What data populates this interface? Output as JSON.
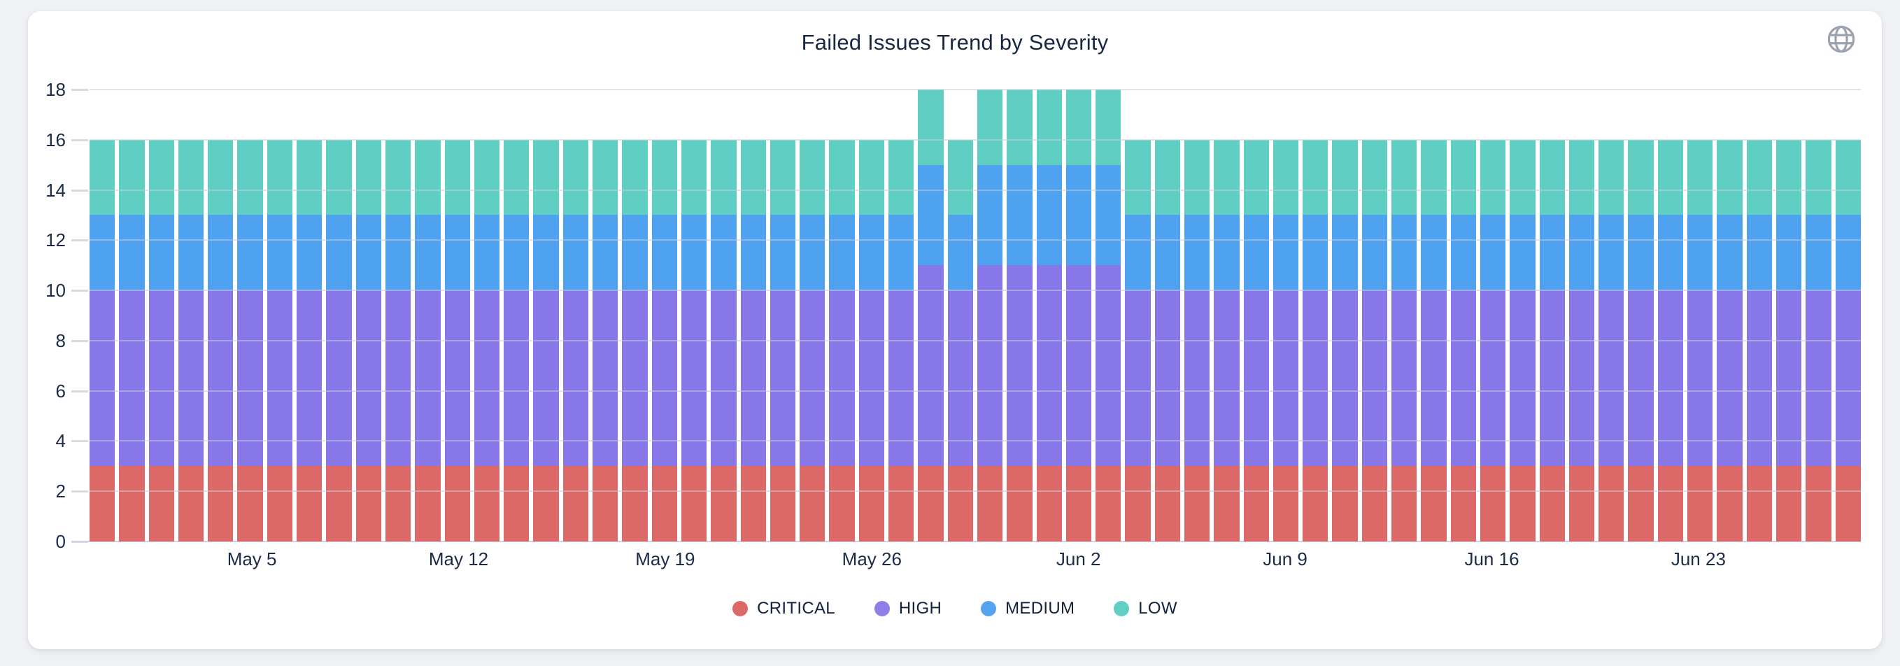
{
  "page": {
    "background": "#eff1f5",
    "card_background": "#ffffff"
  },
  "header": {
    "icons": {
      "action": "globe-icon"
    },
    "icon_color": "#9aa3ae"
  },
  "chart_data": {
    "type": "bar",
    "stacked": true,
    "title": "Failed Issues Trend by Severity",
    "xlabel": "",
    "ylabel": "",
    "ylim": [
      0,
      18
    ],
    "yticks": [
      0,
      2,
      4,
      6,
      8,
      10,
      12,
      14,
      16,
      18
    ],
    "grid": "horizontal",
    "legend_position": "bottom",
    "x": [
      "Apr 30",
      "May 1",
      "May 2",
      "May 3",
      "May 4",
      "May 5",
      "May 6",
      "May 7",
      "May 8",
      "May 9",
      "May 10",
      "May 11",
      "May 12",
      "May 13",
      "May 14",
      "May 15",
      "May 16",
      "May 17",
      "May 18",
      "May 19",
      "May 20",
      "May 21",
      "May 22",
      "May 23",
      "May 24",
      "May 25",
      "May 26",
      "May 27",
      "May 28",
      "May 29",
      "May 30",
      "May 31",
      "Jun 1",
      "Jun 2",
      "Jun 3",
      "Jun 4",
      "Jun 5",
      "Jun 6",
      "Jun 7",
      "Jun 8",
      "Jun 9",
      "Jun 10",
      "Jun 11",
      "Jun 12",
      "Jun 13",
      "Jun 14",
      "Jun 15",
      "Jun 16",
      "Jun 17",
      "Jun 18",
      "Jun 19",
      "Jun 20",
      "Jun 21",
      "Jun 22",
      "Jun 23",
      "Jun 24",
      "Jun 25",
      "Jun 26",
      "Jun 27",
      "Jun 28"
    ],
    "xtick_labels": [
      "May 5",
      "May 12",
      "May 19",
      "May 26",
      "Jun 2",
      "Jun 9",
      "Jun 16",
      "Jun 23"
    ],
    "xtick_indices": [
      5,
      12,
      19,
      26,
      33,
      40,
      47,
      54
    ],
    "series": [
      {
        "name": "CRITICAL",
        "color": "#dc6868",
        "values": [
          3,
          3,
          3,
          3,
          3,
          3,
          3,
          3,
          3,
          3,
          3,
          3,
          3,
          3,
          3,
          3,
          3,
          3,
          3,
          3,
          3,
          3,
          3,
          3,
          3,
          3,
          3,
          3,
          3,
          3,
          3,
          3,
          3,
          3,
          3,
          3,
          3,
          3,
          3,
          3,
          3,
          3,
          3,
          3,
          3,
          3,
          3,
          3,
          3,
          3,
          3,
          3,
          3,
          3,
          3,
          3,
          3,
          3,
          3,
          3
        ]
      },
      {
        "name": "HIGH",
        "color": "#8777e8",
        "values": [
          7,
          7,
          7,
          7,
          7,
          7,
          7,
          7,
          7,
          7,
          7,
          7,
          7,
          7,
          7,
          7,
          7,
          7,
          7,
          7,
          7,
          7,
          7,
          7,
          7,
          7,
          7,
          7,
          8,
          7,
          8,
          8,
          8,
          8,
          8,
          7,
          7,
          7,
          7,
          7,
          7,
          7,
          7,
          7,
          7,
          7,
          7,
          7,
          7,
          7,
          7,
          7,
          7,
          7,
          7,
          7,
          7,
          7,
          7,
          7
        ]
      },
      {
        "name": "MEDIUM",
        "color": "#4ea2ef",
        "values": [
          3,
          3,
          3,
          3,
          3,
          3,
          3,
          3,
          3,
          3,
          3,
          3,
          3,
          3,
          3,
          3,
          3,
          3,
          3,
          3,
          3,
          3,
          3,
          3,
          3,
          3,
          3,
          3,
          4,
          3,
          4,
          4,
          4,
          4,
          4,
          3,
          3,
          3,
          3,
          3,
          3,
          3,
          3,
          3,
          3,
          3,
          3,
          3,
          3,
          3,
          3,
          3,
          3,
          3,
          3,
          3,
          3,
          3,
          3,
          3
        ]
      },
      {
        "name": "LOW",
        "color": "#5fcec3",
        "values": [
          3,
          3,
          3,
          3,
          3,
          3,
          3,
          3,
          3,
          3,
          3,
          3,
          3,
          3,
          3,
          3,
          3,
          3,
          3,
          3,
          3,
          3,
          3,
          3,
          3,
          3,
          3,
          3,
          3,
          3,
          3,
          3,
          3,
          3,
          3,
          3,
          3,
          3,
          3,
          3,
          3,
          3,
          3,
          3,
          3,
          3,
          3,
          3,
          3,
          3,
          3,
          3,
          3,
          3,
          3,
          3,
          3,
          3,
          3,
          3
        ]
      }
    ],
    "axis_text_color": "#1c2b47",
    "title_color": "#182843",
    "gridline_color": "#e4e5ea",
    "baseline_color": "#ccd3e6"
  },
  "legend": {
    "items": [
      {
        "label": "CRITICAL",
        "color": "#dc6868"
      },
      {
        "label": "HIGH",
        "color": "#8f7de9"
      },
      {
        "label": "MEDIUM",
        "color": "#55a4ef"
      },
      {
        "label": "LOW",
        "color": "#62cfc4"
      }
    ]
  }
}
